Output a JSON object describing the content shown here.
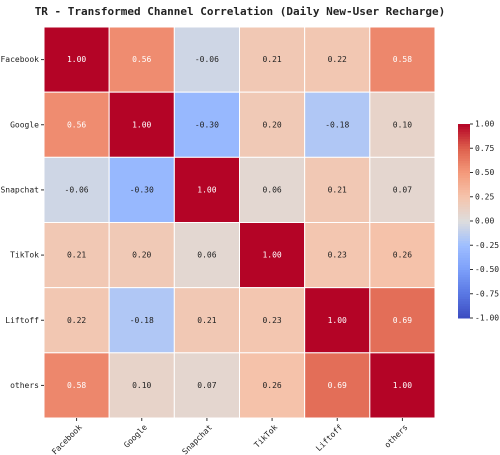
{
  "chart_data": {
    "type": "heatmap",
    "title": "TR - Transformed Channel Correlation (Daily New-User Recharge)",
    "x_categories": [
      "Facebook",
      "Google",
      "Snapchat",
      "TikTok",
      "Liftoff",
      "others"
    ],
    "y_categories": [
      "Facebook",
      "Google",
      "Snapchat",
      "TikTok",
      "Liftoff",
      "others"
    ],
    "values": [
      [
        1,
        0.56,
        -0.06,
        0.21,
        0.22,
        0.58
      ],
      [
        0.56,
        1,
        -0.3,
        0.2,
        -0.18,
        0.1
      ],
      [
        -0.06,
        -0.3,
        1,
        0.06,
        0.21,
        0.07
      ],
      [
        0.21,
        0.2,
        0.06,
        1,
        0.23,
        0.26
      ],
      [
        0.22,
        -0.18,
        0.21,
        0.23,
        1,
        0.69
      ],
      [
        0.58,
        0.1,
        0.07,
        0.26,
        0.69,
        1
      ]
    ],
    "value_labels": [
      [
        "1.00",
        "0.56",
        "-0.06",
        "0.21",
        "0.22",
        "0.58"
      ],
      [
        "0.56",
        "1.00",
        "-0.30",
        "0.20",
        "-0.18",
        "0.10"
      ],
      [
        "-0.06",
        "-0.30",
        "1.00",
        "0.06",
        "0.21",
        "0.07"
      ],
      [
        "0.21",
        "0.20",
        "0.06",
        "1.00",
        "0.23",
        "0.26"
      ],
      [
        "0.22",
        "-0.18",
        "0.21",
        "0.23",
        "1.00",
        "0.69"
      ],
      [
        "0.58",
        "0.10",
        "0.07",
        "0.26",
        "0.69",
        "1.00"
      ]
    ],
    "colormap": "coolwarm",
    "clim": [
      -1,
      1
    ],
    "cticks": [
      {
        "value": -1,
        "label": "-1.00"
      },
      {
        "value": -0.75,
        "label": "-0.75"
      },
      {
        "value": -0.5,
        "label": "-0.50"
      },
      {
        "value": -0.25,
        "label": "-0.25"
      },
      {
        "value": 0,
        "label": "0.00"
      },
      {
        "value": 0.25,
        "label": "0.25"
      },
      {
        "value": 0.5,
        "label": "0.50"
      },
      {
        "value": 0.75,
        "label": "0.75"
      },
      {
        "value": 1,
        "label": "1.00"
      }
    ]
  }
}
